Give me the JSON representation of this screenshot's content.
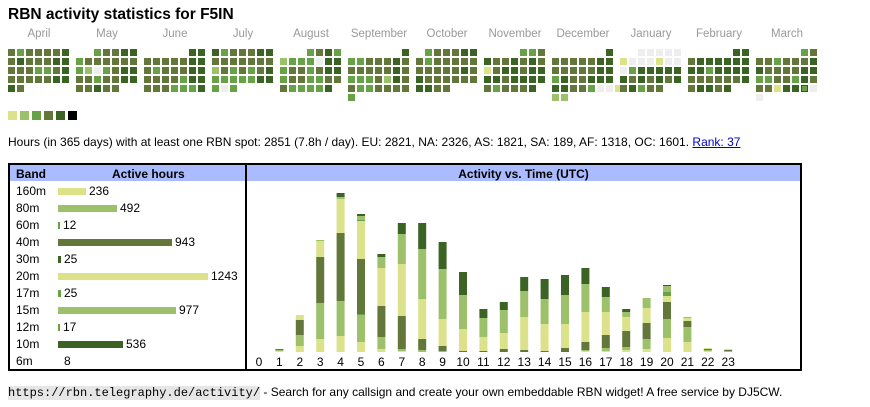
{
  "title": "RBN activity statistics for F5IN",
  "palette": {
    "e": "#eeeeee",
    "1": "#dce28a",
    "2": "#9dc16a",
    "3": "#68a246",
    "4": "#64773a",
    "5": "#3b6424",
    "black": "#000000"
  },
  "calendar": [
    {
      "month": "April",
      "rows": [
        "4344445",
        "4544455",
        "4443345",
        "4444455",
        "54"
      ]
    },
    {
      "month": "May",
      "rows": [
        "0034455",
        "3444444",
        "32e3455",
        "4434455",
        "44544"
      ]
    },
    {
      "month": "June",
      "rows": [
        "0000055",
        "4444455",
        "4344455",
        "4444355",
        "4443335"
      ]
    },
    {
      "month": "July",
      "rows": [
        "5344455",
        "4444444",
        "2434345",
        "3333355",
        "3e3"
      ]
    },
    {
      "month": "August",
      "rows": [
        "0003453",
        "2333e55",
        "3443455",
        "3443344",
        "433335"
      ]
    },
    {
      "month": "September",
      "rows": [
        "0000005",
        "3344454",
        "4444454",
        "3334254",
        "4334444",
        "3"
      ]
    },
    {
      "month": "October",
      "rows": [
        "0344455",
        "4344444",
        "4444454",
        "5444444",
        "5544"
      ]
    },
    {
      "month": "November",
      "rows": [
        "0000334",
        "5445454",
        "1455455",
        "5545555",
        "434445"
      ]
    },
    {
      "month": "December",
      "rows": [
        "0000005",
        "4444455",
        "4444455",
        "3544555",
        "55443ee1",
        "22"
      ]
    },
    {
      "month": "January",
      "rows": [
        "00eeeee",
        "1eee1ee",
        "e355555",
        "5454545",
        "45344"
      ]
    },
    {
      "month": "February",
      "rows": [
        "0000055",
        "4555555",
        "5535555",
        "4444445",
        "45545"
      ]
    },
    {
      "month": "March",
      "rows": [
        "0000034",
        "4434445",
        "5444455",
        "3344354",
        "44155Te",
        "e"
      ]
    }
  ],
  "today_level": "3",
  "legend_levels": [
    "1",
    "2",
    "3",
    "4",
    "5",
    "black"
  ],
  "stats": {
    "text": "Hours (in 365 days) with at least one RBN spot: 2851 (7.8h / day). EU: 2821, NA: 2326, AS: 1821, SA: 189, AF: 1318, OC: 1601.",
    "rank_link": "Rank: 37"
  },
  "band_table": {
    "header_band": "Band",
    "header_hours": "Active hours",
    "max": 1243,
    "rows": [
      {
        "band": "160m",
        "hours": 236,
        "color": "#dce28a"
      },
      {
        "band": "80m",
        "hours": 492,
        "color": "#9dc16a"
      },
      {
        "band": "60m",
        "hours": 12,
        "color": "#68a246"
      },
      {
        "band": "40m",
        "hours": 943,
        "color": "#64773a"
      },
      {
        "band": "30m",
        "hours": 25,
        "color": "#3b6424"
      },
      {
        "band": "20m",
        "hours": 1243,
        "color": "#dce28a"
      },
      {
        "band": "17m",
        "hours": 25,
        "color": "#68a246"
      },
      {
        "band": "15m",
        "hours": 977,
        "color": "#9dc16a"
      },
      {
        "band": "12m",
        "hours": 17,
        "color": "#68a246"
      },
      {
        "band": "10m",
        "hours": 536,
        "color": "#3b6424"
      },
      {
        "band": "6m",
        "hours": 8,
        "color": "#64773a"
      }
    ]
  },
  "chart_data": {
    "type": "bar",
    "stacked": true,
    "title": "Activity vs. Time (UTC)",
    "categories": [
      "0",
      "1",
      "2",
      "3",
      "4",
      "5",
      "6",
      "7",
      "8",
      "9",
      "10",
      "11",
      "12",
      "13",
      "14",
      "15",
      "16",
      "17",
      "18",
      "19",
      "20",
      "21",
      "22",
      "23"
    ],
    "ylim": [
      0,
      330
    ],
    "series": [
      {
        "name": "160m",
        "color": "#dce28a",
        "values": [
          0,
          2,
          12,
          26,
          32,
          20,
          6,
          2,
          0,
          0,
          0,
          0,
          0,
          0,
          0,
          0,
          2,
          2,
          4,
          6,
          28,
          20,
          2,
          0
        ]
      },
      {
        "name": "80m",
        "color": "#9dc16a",
        "values": [
          0,
          2,
          22,
          72,
          70,
          54,
          24,
          4,
          4,
          2,
          0,
          0,
          0,
          0,
          0,
          0,
          2,
          6,
          6,
          20,
          38,
          30,
          2,
          2
        ]
      },
      {
        "name": "60m",
        "color": "#68a246",
        "values": [
          0,
          0,
          0,
          0,
          0,
          2,
          0,
          0,
          0,
          0,
          0,
          0,
          0,
          0,
          0,
          0,
          0,
          0,
          0,
          0,
          0,
          0,
          0,
          0
        ]
      },
      {
        "name": "40m",
        "color": "#64773a",
        "values": [
          0,
          2,
          30,
          92,
          136,
          110,
          62,
          66,
          22,
          10,
          2,
          2,
          6,
          4,
          2,
          8,
          16,
          26,
          32,
          32,
          34,
          12,
          2,
          2
        ]
      },
      {
        "name": "20m",
        "color": "#dce28a",
        "values": [
          0,
          0,
          10,
          32,
          68,
          76,
          76,
          104,
          80,
          54,
          44,
          28,
          32,
          66,
          54,
          48,
          60,
          46,
          28,
          30,
          12,
          6,
          2,
          2
        ]
      },
      {
        "name": "17m",
        "color": "#68a246",
        "values": [
          0,
          0,
          0,
          0,
          0,
          2,
          0,
          0,
          0,
          0,
          0,
          0,
          0,
          0,
          0,
          0,
          0,
          0,
          0,
          0,
          8,
          0,
          0,
          0
        ]
      },
      {
        "name": "15m",
        "color": "#9dc16a",
        "values": [
          0,
          0,
          0,
          2,
          4,
          8,
          22,
          60,
          100,
          100,
          68,
          38,
          46,
          52,
          50,
          58,
          56,
          30,
          10,
          20,
          12,
          2,
          0,
          0
        ]
      },
      {
        "name": "10m",
        "color": "#3b6424",
        "values": [
          0,
          0,
          0,
          0,
          8,
          4,
          6,
          22,
          52,
          54,
          46,
          18,
          16,
          28,
          40,
          40,
          32,
          20,
          6,
          0,
          2,
          0,
          0,
          0
        ]
      }
    ]
  },
  "footer": {
    "url": "https://rbn.telegraphy.de/activity/",
    "text": " - Search for any callsign and create your own embeddable RBN widget! A free service by DJ5CW."
  }
}
